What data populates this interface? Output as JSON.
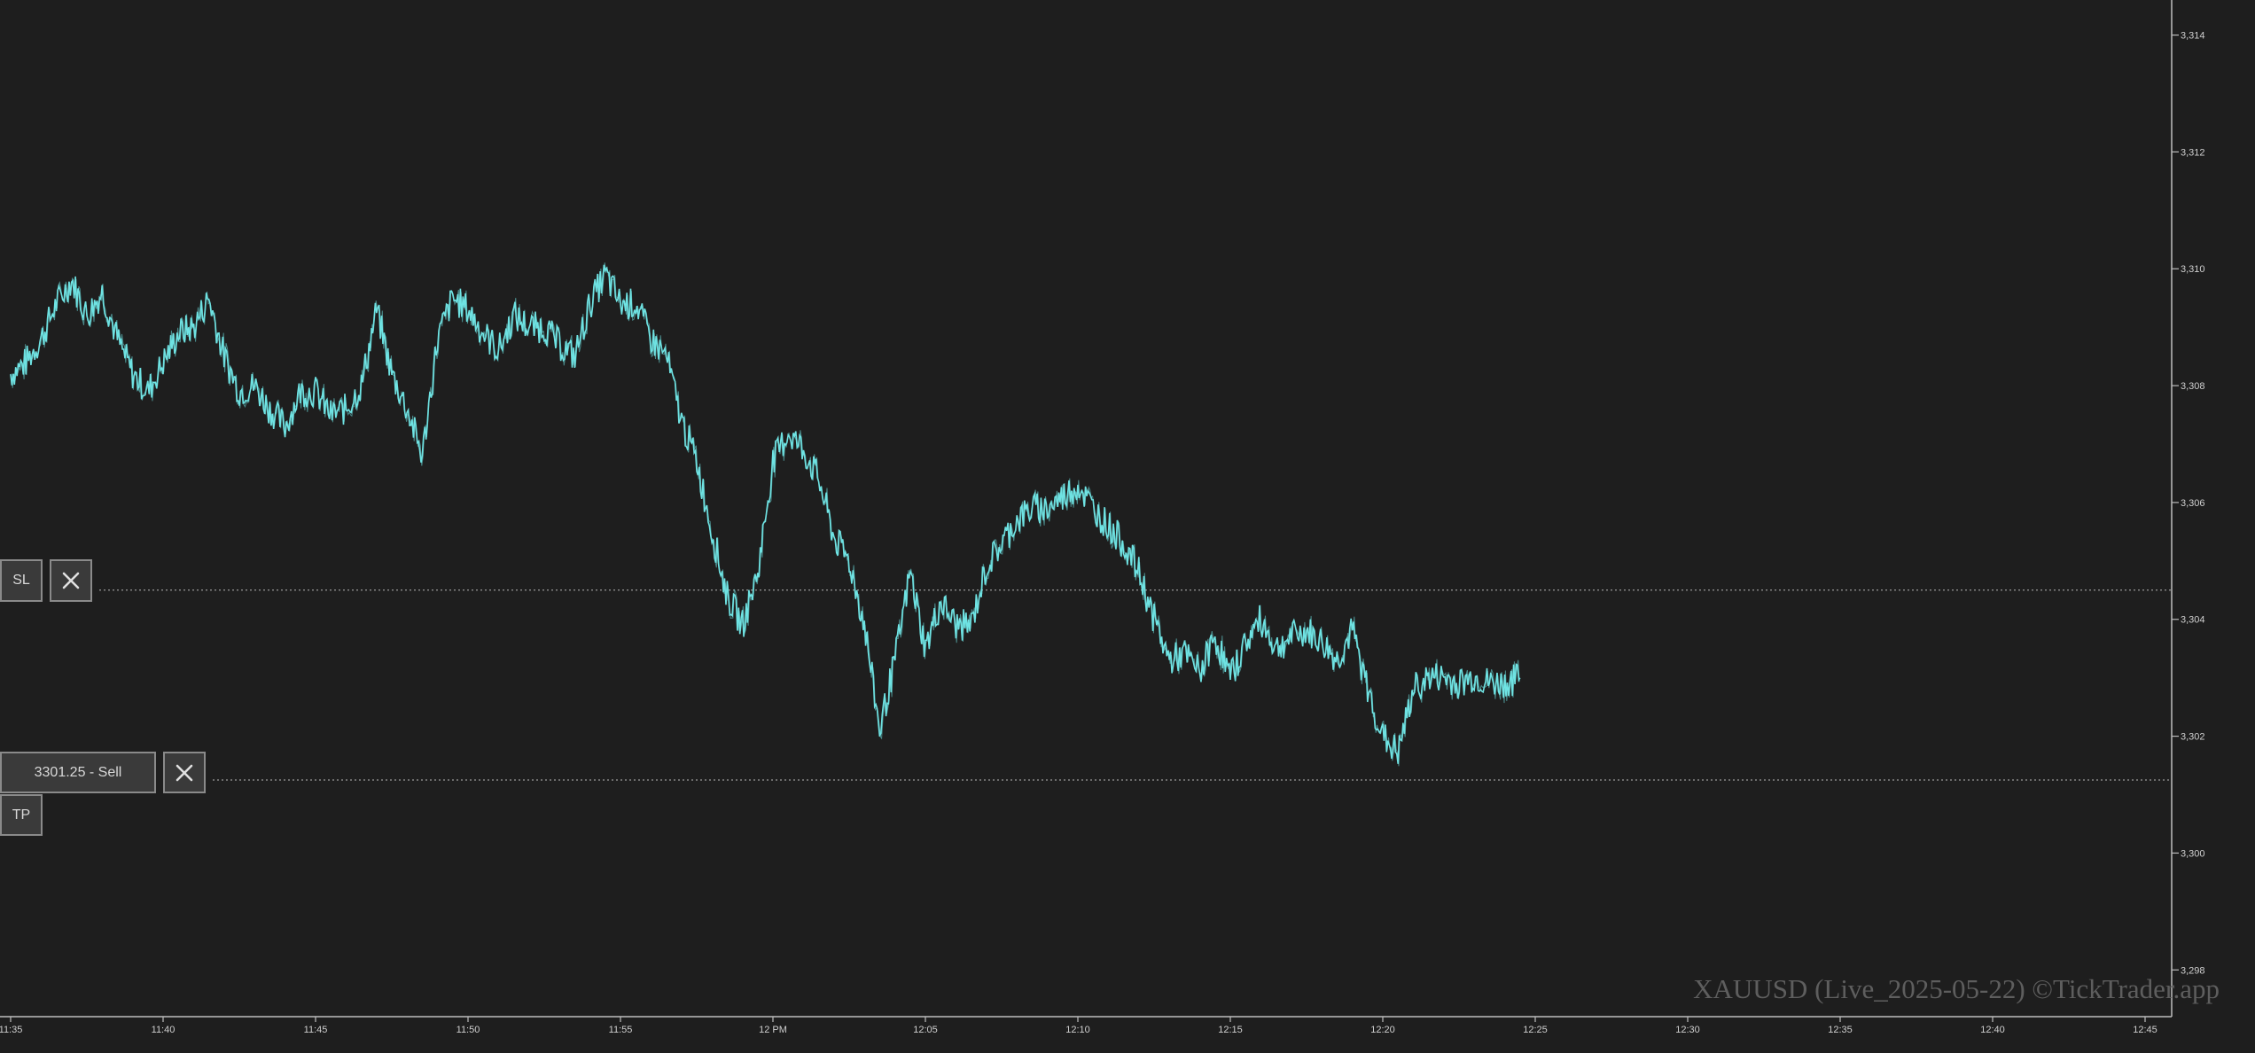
{
  "chart_data": {
    "type": "line",
    "title": "",
    "xlabel": "",
    "ylabel": "",
    "x_ticks": [
      "11:35",
      "11:40",
      "11:45",
      "11:50",
      "11:55",
      "12 PM",
      "12:05",
      "12:10",
      "12:15",
      "12:20",
      "12:25",
      "12:30",
      "12:35",
      "12:40",
      "12:45"
    ],
    "y_ticks": [
      "3,298",
      "3,300",
      "3,302",
      "3,304",
      "3,306",
      "3,308",
      "3,310",
      "3,312",
      "3,314"
    ],
    "xlim_minutes_after_11_35": [
      0,
      70
    ],
    "ylim": [
      3297.2,
      3314.6
    ],
    "line_color": "#6fe3e3",
    "series": [
      {
        "x_minutes_after_11_35": [
          0,
          0.5,
          1,
          1.5,
          2,
          2.5,
          3,
          3.5,
          4,
          4.5,
          5,
          5.5,
          6,
          6.5,
          7,
          7.5,
          8,
          8.5,
          9,
          9.5,
          10,
          10.5,
          11,
          11.5,
          12,
          12.5,
          13,
          13.5,
          14,
          14.5,
          15,
          15.5,
          16,
          16.5,
          17,
          17.5,
          18,
          18.5,
          19,
          19.5,
          20,
          20.5,
          21,
          21.5,
          22,
          22.5,
          23,
          23.5,
          24,
          24.5,
          25,
          25.5,
          26,
          26.5,
          27,
          27.5,
          28,
          28.5,
          29,
          29.5,
          30,
          30.5,
          31,
          31.5,
          32,
          32.5,
          33,
          33.5,
          34,
          34.5,
          35,
          35.5,
          36,
          36.5,
          37,
          37.5,
          38,
          38.5,
          39,
          39.5,
          40,
          40.5,
          41,
          41.5,
          42,
          42.5,
          43,
          43.5,
          44,
          44.5,
          45,
          45.5,
          46,
          46.5,
          47,
          47.5,
          48,
          48.5,
          49,
          49.5
        ],
        "values": [
          3308.2,
          3308.4,
          3308.8,
          3309.4,
          3309.8,
          3309.2,
          3309.6,
          3308.8,
          3308.2,
          3307.9,
          3308.4,
          3308.9,
          3309.0,
          3309.5,
          3308.5,
          3307.9,
          3308.0,
          3307.6,
          3307.3,
          3307.9,
          3307.9,
          3307.5,
          3307.6,
          3308.0,
          3309.3,
          3308.2,
          3307.6,
          3306.8,
          3308.8,
          3309.5,
          3309.3,
          3308.9,
          3308.6,
          3309.2,
          3309.0,
          3309.0,
          3308.7,
          3308.5,
          3309.4,
          3309.9,
          3309.4,
          3309.4,
          3308.8,
          3308.5,
          3307.4,
          3306.7,
          3305.5,
          3304.4,
          3303.9,
          3304.8,
          3306.7,
          3307.2,
          3306.9,
          3306.4,
          3305.4,
          3305.0,
          3303.9,
          3302.1,
          3303.3,
          3304.8,
          3303.5,
          3304.3,
          3303.9,
          3303.9,
          3304.9,
          3305.3,
          3305.7,
          3305.9,
          3305.9,
          3306.1,
          3306.3,
          3305.9,
          3305.6,
          3305.3,
          3304.8,
          3304.0,
          3303.3,
          3303.4,
          3303.1,
          3303.7,
          3303.0,
          3303.6,
          3304.0,
          3303.5,
          3303.7,
          3303.8,
          3303.6,
          3303.3,
          3303.8,
          3302.8,
          3302.0,
          3301.7,
          3302.8,
          3303.0,
          3303.0,
          3302.9,
          3303.0,
          3302.9,
          3302.9,
          3303.0
        ]
      }
    ],
    "orders": {
      "sl_price": 3304.5,
      "entry_price": 3301.25
    }
  },
  "orders": {
    "sl_label": "SL",
    "entry_label": "3301.25 - Sell",
    "tp_label": "TP"
  },
  "watermark": "XAUUSD (Live_2025-05-22) ©TickTrader.app"
}
